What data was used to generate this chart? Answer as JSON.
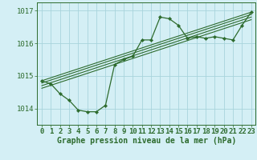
{
  "title": "Graphe pression niveau de la mer (hPa)",
  "background_color": "#d4eff5",
  "grid_color": "#a8d4dc",
  "line_color": "#2d6b2d",
  "marker_color": "#2d6b2d",
  "xlim": [
    -0.5,
    23.5
  ],
  "ylim": [
    1013.5,
    1017.25
  ],
  "yticks": [
    1014,
    1015,
    1016,
    1017
  ],
  "xticks": [
    0,
    1,
    2,
    3,
    4,
    5,
    6,
    7,
    8,
    9,
    10,
    11,
    12,
    13,
    14,
    15,
    16,
    17,
    18,
    19,
    20,
    21,
    22,
    23
  ],
  "main_x": [
    0,
    1,
    2,
    3,
    4,
    5,
    6,
    7,
    8,
    9,
    10,
    11,
    12,
    13,
    14,
    15,
    16,
    17,
    18,
    19,
    20,
    21,
    22,
    23
  ],
  "main_y": [
    1014.85,
    1014.75,
    1014.45,
    1014.25,
    1013.95,
    1013.9,
    1013.9,
    1014.1,
    1015.35,
    1015.5,
    1015.6,
    1016.1,
    1016.1,
    1016.8,
    1016.75,
    1016.55,
    1016.15,
    1016.2,
    1016.15,
    1016.2,
    1016.15,
    1016.1,
    1016.55,
    1016.95
  ],
  "line1_x": [
    0,
    23
  ],
  "line1_y": [
    1014.85,
    1016.95
  ],
  "line2_x": [
    0,
    23
  ],
  "line2_y": [
    1014.78,
    1016.88
  ],
  "line3_x": [
    0,
    23
  ],
  "line3_y": [
    1014.7,
    1016.8
  ],
  "line4_x": [
    0,
    23
  ],
  "line4_y": [
    1014.62,
    1016.72
  ],
  "tick_fontsize": 6.5,
  "label_fontsize": 7.0
}
